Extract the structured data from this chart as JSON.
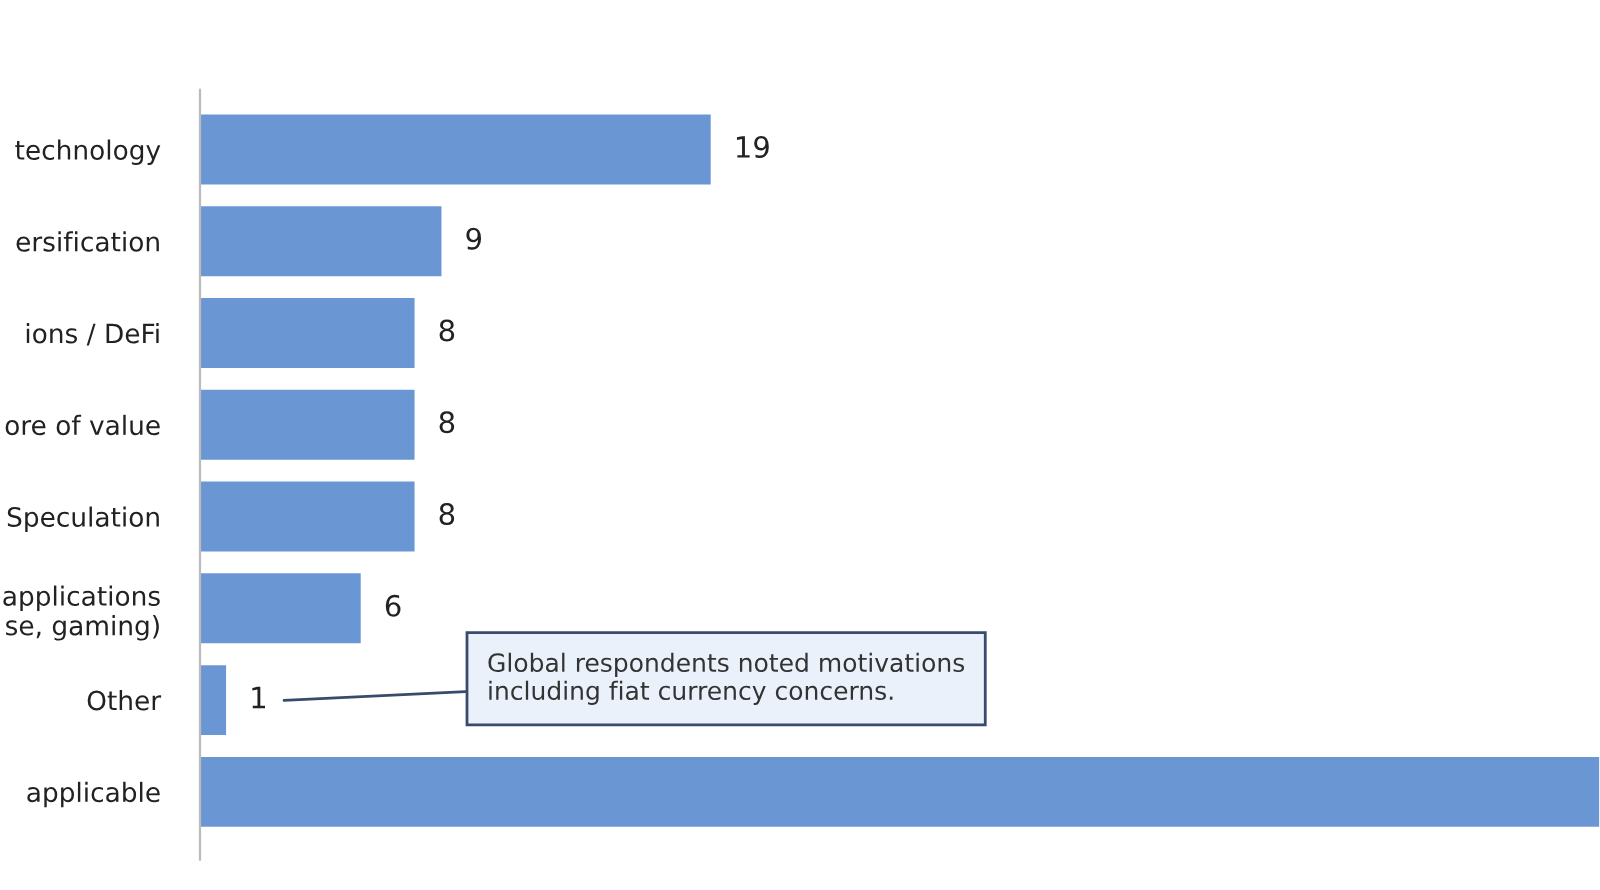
{
  "chart_data": {
    "type": "bar",
    "orientation": "horizontal",
    "categories": [
      "technology",
      "ersification",
      "ions / DeFi",
      "ore of value",
      "Speculation",
      "applications\nse, gaming)",
      "Other",
      "applicable"
    ],
    "values": [
      19,
      9,
      8,
      8,
      8,
      6,
      1,
      52
    ],
    "value_labels": [
      "19",
      "9",
      "8",
      "8",
      "8",
      "6",
      "1",
      null
    ],
    "color": "#6b96d4",
    "xlim": [
      0,
      52
    ],
    "tick_labels": "y",
    "grid": false,
    "legend": false,
    "annotations": [
      "Global respondents noted motivations\nincluding fiat currency concerns."
    ]
  }
}
